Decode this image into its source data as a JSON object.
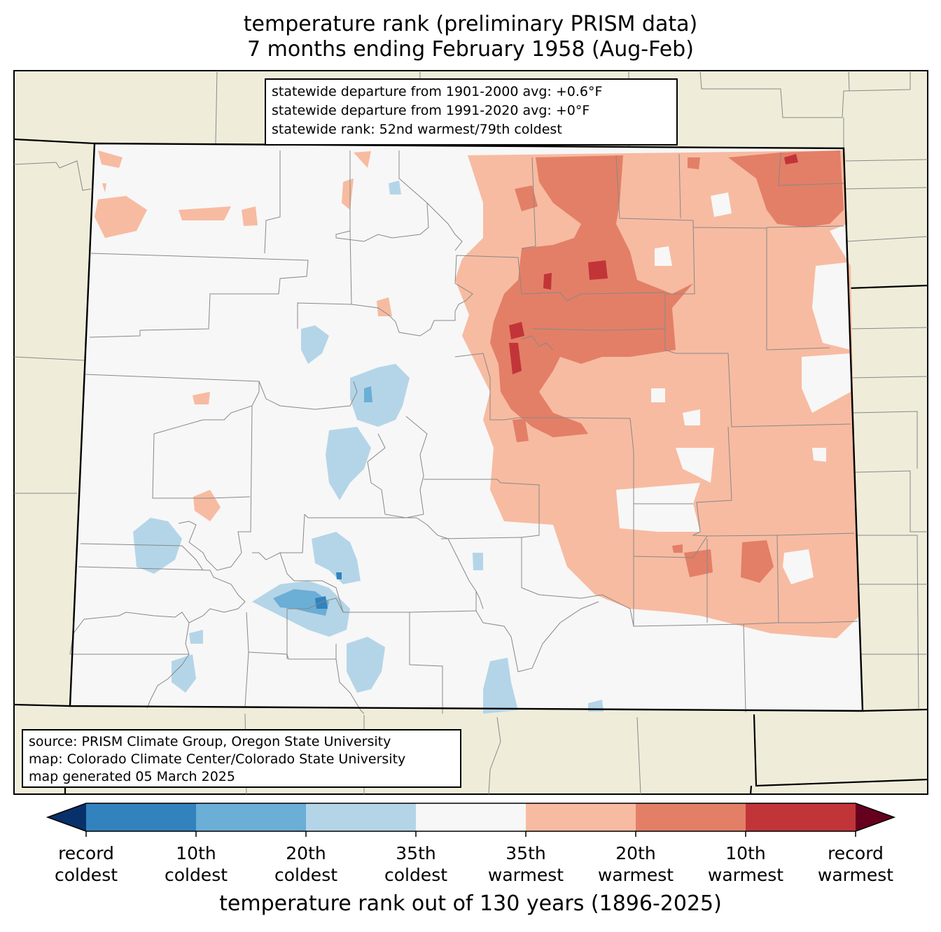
{
  "title": {
    "line1": "temperature rank (preliminary PRISM data)",
    "line2": "7 months ending February 1958 (Aug-Feb)"
  },
  "stats": {
    "line1": "statewide departure from 1901-2000 avg: +0.6°F",
    "line2": "statewide departure from 1991-2020 avg: +0°F",
    "line3": "statewide rank: 52nd warmest/79th coldest"
  },
  "source": {
    "line1": "source: PRISM Climate Group, Oregon State University",
    "line2": "map: Colorado Climate Center/Colorado State University",
    "line3": "map generated 05 March 2025"
  },
  "colorbar": {
    "label": "temperature rank out of 130 years (1896-2025)",
    "colors": [
      "#08306b",
      "#3282bd",
      "#6baed6",
      "#b4d5e8",
      "#f7f7f7",
      "#f7bba1",
      "#e37f67",
      "#c13539",
      "#67001f"
    ],
    "ticks": [
      {
        "top": "record",
        "bottom": "coldest"
      },
      {
        "top": "10th",
        "bottom": "coldest"
      },
      {
        "top": "20th",
        "bottom": "coldest"
      },
      {
        "top": "35th",
        "bottom": "coldest"
      },
      {
        "top": "35th",
        "bottom": "warmest"
      },
      {
        "top": "20th",
        "bottom": "warmest"
      },
      {
        "top": "10th",
        "bottom": "warmest"
      },
      {
        "top": "record",
        "bottom": "warmest"
      }
    ]
  },
  "map_colors": {
    "background_land": "#efedda",
    "state_fill": "#f7f7f7",
    "county_line": "#888888",
    "state_line": "#000000"
  }
}
